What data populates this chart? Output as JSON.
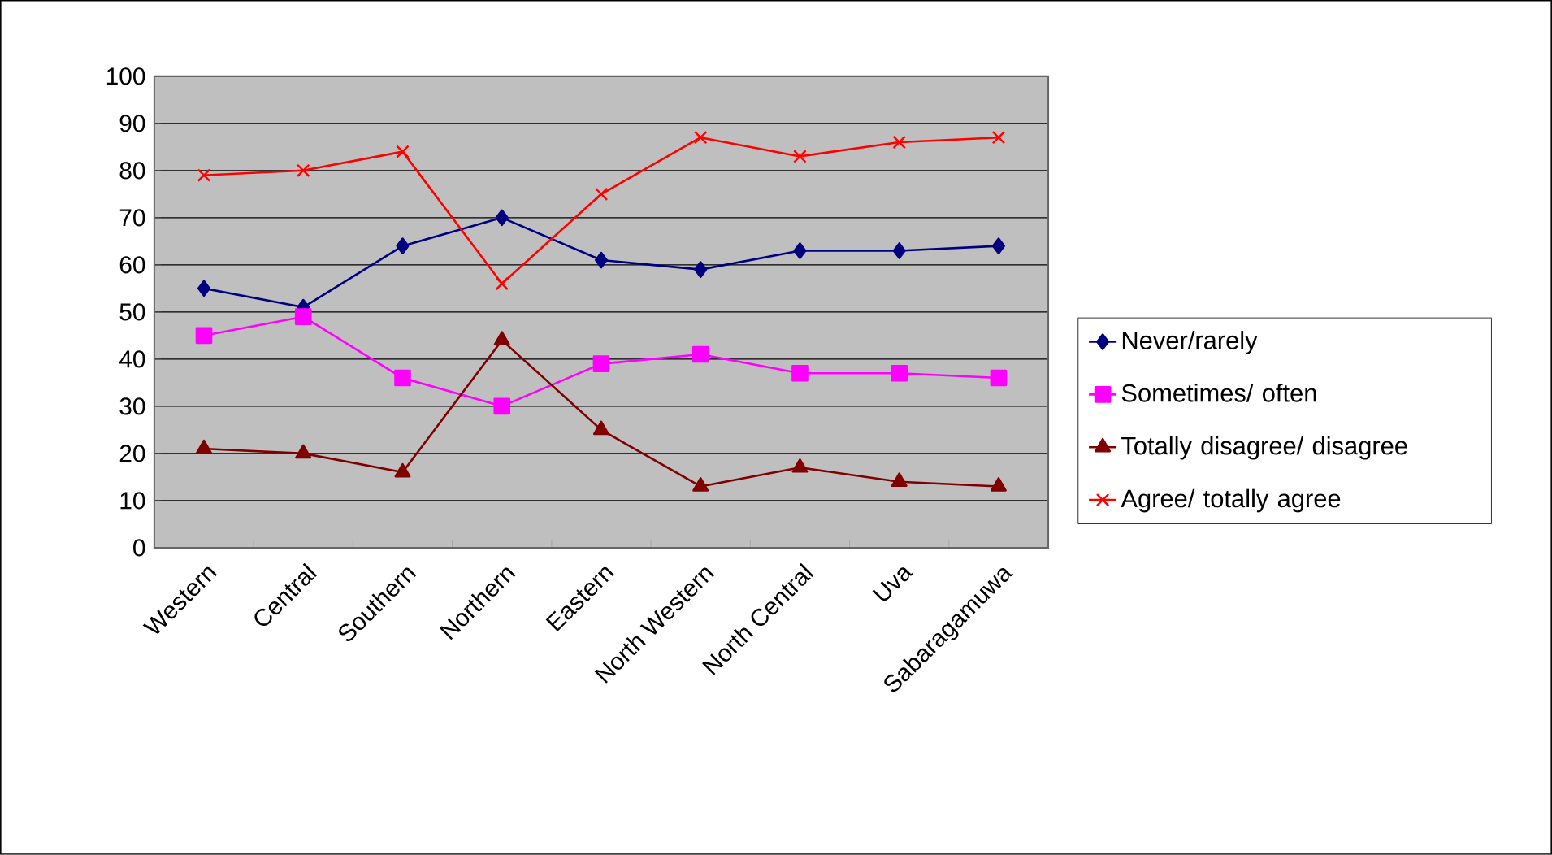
{
  "chart_data": {
    "type": "line",
    "categories": [
      "Western",
      "Central",
      "Southern",
      "Northern",
      "Eastern",
      "North Western",
      "North Central",
      "Uva",
      "Sabaragamuwa"
    ],
    "series": [
      {
        "name": "Never/rarely",
        "color": "#000080",
        "marker": "diamond",
        "values": [
          55,
          51,
          64,
          70,
          61,
          59,
          63,
          63,
          64
        ]
      },
      {
        "name": "Sometimes/ often",
        "color": "#ff00ff",
        "marker": "square",
        "values": [
          45,
          49,
          36,
          30,
          39,
          41,
          37,
          37,
          36
        ]
      },
      {
        "name": "Totally disagree/ disagree",
        "color": "#800000",
        "marker": "triangle",
        "values": [
          21,
          20,
          16,
          44,
          25,
          13,
          17,
          14,
          13
        ]
      },
      {
        "name": "Agree/ totally agree",
        "color": "#ff0000",
        "marker": "cross",
        "values": [
          79,
          80,
          84,
          56,
          75,
          87,
          83,
          86,
          87
        ]
      }
    ],
    "ylim": [
      0,
      100
    ],
    "yticks": [
      0,
      10,
      20,
      30,
      40,
      50,
      60,
      70,
      80,
      90,
      100
    ],
    "grid": "y",
    "legend": "right",
    "line_style": "solid"
  }
}
